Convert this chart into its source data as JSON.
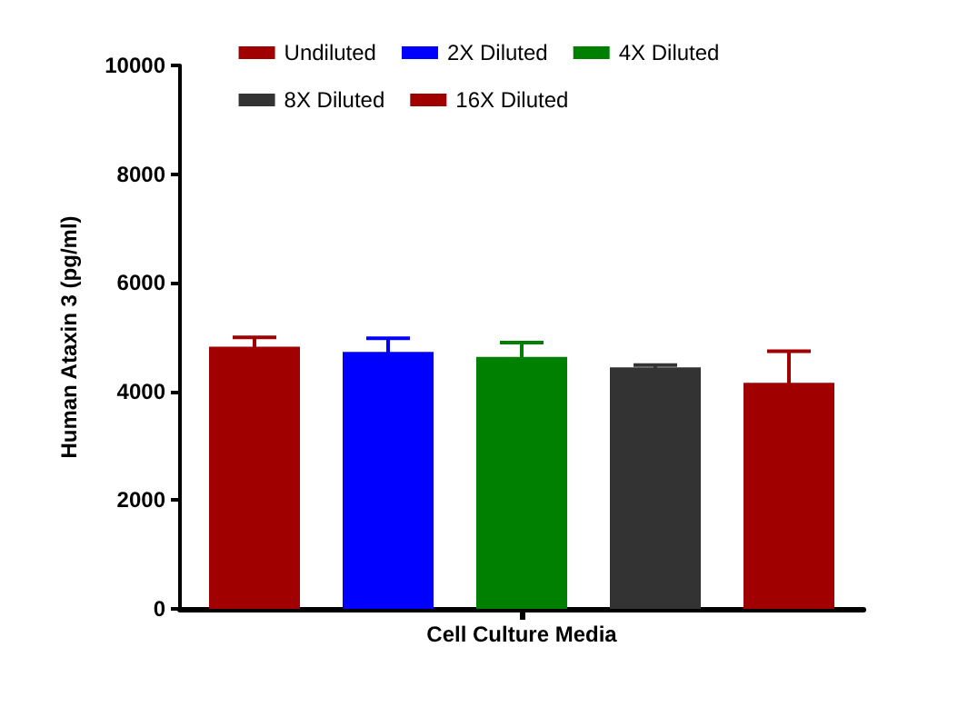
{
  "chart_data": {
    "type": "bar",
    "ylabel": "Human Ataxin 3 (pg/ml)",
    "categories": [
      "Cell Culture Media"
    ],
    "series": [
      {
        "name": "Undiluted",
        "color": "#a00000",
        "values": [
          4825
        ],
        "errors": [
          170
        ]
      },
      {
        "name": "2X Diluted",
        "color": "#0000ff",
        "values": [
          4730
        ],
        "errors": [
          250
        ]
      },
      {
        "name": "4X Diluted",
        "color": "#008000",
        "values": [
          4635
        ],
        "errors": [
          265
        ]
      },
      {
        "name": "8X Diluted",
        "color": "#333333",
        "values": [
          4445
        ],
        "errors": [
          40
        ]
      },
      {
        "name": "16X Diluted",
        "color": "#a00000",
        "values": [
          4160
        ],
        "errors": [
          580
        ]
      }
    ],
    "ylim": [
      0,
      10000
    ],
    "yticks": [
      0,
      2000,
      4000,
      6000,
      8000,
      10000
    ],
    "grid": false,
    "legend": "top"
  }
}
